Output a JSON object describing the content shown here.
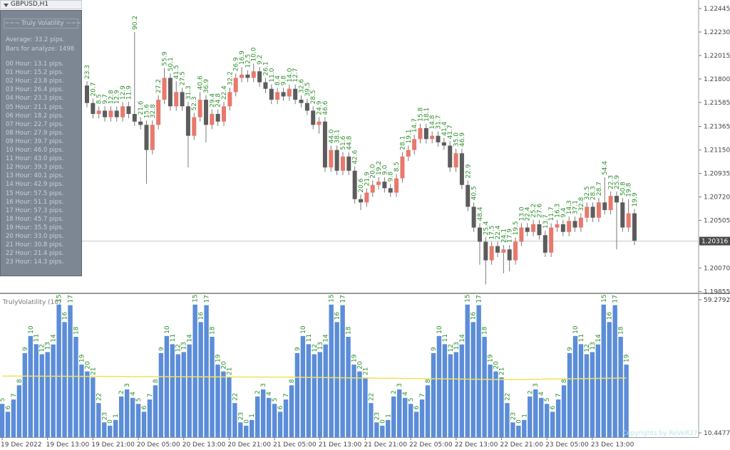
{
  "window": {
    "title": "GBPUSD,H1"
  },
  "info_panel": {
    "title": "~~~ Truly Volatility ~~~",
    "average": "Average: 33.2 pips.",
    "bars": "Bars for analyze: 1498",
    "hours": [
      "00 Hour: 13.1 pips.",
      "01 Hour: 15.2 pips.",
      "02 Hour: 23.8 pips.",
      "03 Hour: 26.4 pips.",
      "04 Hour: 23.3 pips.",
      "05 Hour: 21.1 pips.",
      "06 Hour: 18.2 pips.",
      "07 Hour: 22.7 pips.",
      "08 Hour: 27.9 pips.",
      "09 Hour: 39.7 pips.",
      "10 Hour: 46.0 pips.",
      "11 Hour: 43.0 pips.",
      "12 Hour: 39.3 pips.",
      "13 Hour: 40.1 pips.",
      "14 Hour: 42.9 pips.",
      "15 Hour: 57.5 pips.",
      "16 Hour: 51.1 pips.",
      "17 Hour: 57.3 pips.",
      "18 Hour: 45.7 pips.",
      "19 Hour: 35.5 pips.",
      "20 Hour: 33.0 pips.",
      "21 Hour: 30.8 pips.",
      "22 Hour: 21.4 pips.",
      "23 Hour: 14.3 pips."
    ]
  },
  "chart_data": [
    {
      "type": "candlestick",
      "up_color": "#e8796c",
      "down_color": "#5c5c5c",
      "label_color": "#2f8f2f",
      "ylim": [
        1.19844,
        1.2251
      ],
      "yticks": [
        1.22445,
        {
          "value": 1.2223,
          "label": "1.22230"
        },
        1.22015,
        {
          "value": 1.218,
          "label": "1.21800"
        },
        1.21585,
        1.21365,
        {
          "value": 1.2115,
          "label": "1.21150"
        },
        1.20935,
        {
          "value": 1.2072,
          "label": "1.20720"
        },
        1.20505,
        {
          "value": 1.2007,
          "label": "1.20070"
        },
        1.19855
      ],
      "current_price": 1.20316,
      "open": [
        1.2174,
        1.2158,
        1.2148,
        1.2151,
        1.2145,
        1.2151,
        1.2145,
        1.2155,
        1.2148,
        1.2141,
        1.2138,
        1.2115,
        1.2138,
        1.2161,
        1.2181,
        1.2155,
        1.2168,
        1.2155,
        1.2128,
        1.2145,
        1.2161,
        1.2138,
        1.2148,
        1.2141,
        1.2155,
        1.2168,
        1.2181,
        1.2184,
        1.2181,
        1.2187,
        1.2177,
        1.2171,
        1.2161,
        1.2168,
        1.2164,
        1.2171,
        1.2161,
        1.2158,
        1.2151,
        1.2138,
        1.2141,
        1.2099,
        1.2115,
        1.2096,
        1.2109,
        1.2096,
        1.207,
        1.2067,
        1.2076,
        1.2083,
        1.2086,
        1.208,
        1.2076,
        1.2089,
        1.2109,
        1.2115,
        1.2125,
        1.2135,
        1.2125,
        1.2128,
        1.2122,
        1.2119,
        1.2099,
        1.2112,
        1.2083,
        1.2063,
        1.2044,
        1.2031,
        1.2014,
        1.2027,
        1.2021,
        1.2024,
        1.2014,
        1.2031,
        1.2044,
        1.204,
        1.2047,
        1.2037,
        1.2021,
        1.2044,
        1.2047,
        1.204,
        1.205,
        1.2044,
        1.2053,
        1.2063,
        1.2053,
        1.2067,
        1.206,
        1.2073,
        1.2067,
        1.2044,
        1.2057
      ],
      "high": [
        1.2178,
        1.2162,
        1.2155,
        1.2155,
        1.2155,
        1.2155,
        1.2159,
        1.2159,
        1.2223,
        1.2145,
        1.2142,
        1.2142,
        1.2165,
        1.219,
        1.2185,
        1.2178,
        1.2172,
        1.2159,
        1.2149,
        1.2168,
        1.2165,
        1.2152,
        1.2152,
        1.2159,
        1.2172,
        1.2185,
        1.2191,
        1.2188,
        1.2194,
        1.2191,
        1.2181,
        1.2175,
        1.2172,
        1.2172,
        1.2175,
        1.2175,
        1.2165,
        1.2162,
        1.2155,
        1.2145,
        1.2145,
        1.2119,
        1.2119,
        1.2113,
        1.2113,
        1.21,
        1.2074,
        1.208,
        1.2087,
        1.209,
        1.209,
        1.2084,
        1.2093,
        1.2113,
        1.2119,
        1.2129,
        1.2139,
        1.2139,
        1.2132,
        1.2132,
        1.2126,
        1.2123,
        1.2116,
        1.2116,
        1.2087,
        1.2067,
        1.2048,
        1.2035,
        1.2031,
        1.2031,
        1.2028,
        1.2028,
        1.2035,
        1.2048,
        1.2048,
        1.2051,
        1.2051,
        1.2041,
        1.2048,
        1.2051,
        1.2051,
        1.2054,
        1.2054,
        1.2057,
        1.2067,
        1.2067,
        1.2071,
        1.209,
        1.2077,
        1.2077,
        1.2071,
        1.207,
        1.2061
      ],
      "low": [
        1.2154,
        1.2144,
        1.2144,
        1.2141,
        1.2141,
        1.2141,
        1.2141,
        1.2144,
        1.2137,
        1.2134,
        1.2084,
        1.2111,
        1.2134,
        1.2157,
        1.2151,
        1.2151,
        1.2151,
        1.2099,
        1.2124,
        1.2141,
        1.2122,
        1.2134,
        1.2137,
        1.2137,
        1.2151,
        1.2164,
        1.2177,
        1.2177,
        1.2177,
        1.2173,
        1.2167,
        1.2157,
        1.2157,
        1.216,
        1.216,
        1.2157,
        1.2154,
        1.2147,
        1.2134,
        1.213,
        1.2095,
        1.2095,
        1.2092,
        1.2092,
        1.2092,
        1.2066,
        1.206,
        1.2063,
        1.2072,
        1.2079,
        1.2076,
        1.2072,
        1.2072,
        1.2085,
        1.2105,
        1.2111,
        1.2121,
        1.2121,
        1.2121,
        1.2118,
        1.2115,
        1.2095,
        1.2095,
        1.2079,
        1.2059,
        1.204,
        1.201,
        1.1992,
        1.201,
        1.2017,
        1.2002,
        1.2004,
        1.201,
        1.2027,
        1.2036,
        1.2036,
        1.2033,
        1.2017,
        1.2017,
        1.204,
        1.2036,
        1.2036,
        1.204,
        1.204,
        1.2049,
        1.2049,
        1.2049,
        1.2056,
        1.2056,
        1.2024,
        1.204,
        1.204,
        1.2028
      ],
      "close": [
        1.2158,
        1.2148,
        1.2151,
        1.2145,
        1.2151,
        1.2145,
        1.2155,
        1.2148,
        1.2141,
        1.2138,
        1.2115,
        1.2138,
        1.2161,
        1.2181,
        1.2155,
        1.2168,
        1.2155,
        1.2128,
        1.2145,
        1.2161,
        1.2138,
        1.2148,
        1.2141,
        1.2155,
        1.2168,
        1.2181,
        1.2184,
        1.2181,
        1.2187,
        1.2177,
        1.2171,
        1.2161,
        1.2168,
        1.2164,
        1.2171,
        1.2161,
        1.2158,
        1.2151,
        1.2138,
        1.2141,
        1.2099,
        1.2115,
        1.2096,
        1.2109,
        1.2096,
        1.207,
        1.2067,
        1.2076,
        1.2083,
        1.2086,
        1.208,
        1.2076,
        1.2089,
        1.2109,
        1.2115,
        1.2125,
        1.2135,
        1.2125,
        1.2128,
        1.2122,
        1.2119,
        1.2099,
        1.2112,
        1.2083,
        1.2063,
        1.2044,
        1.2031,
        1.2014,
        1.2027,
        1.2021,
        1.2024,
        1.2014,
        1.2031,
        1.2044,
        1.204,
        1.2047,
        1.2037,
        1.2021,
        1.2044,
        1.2047,
        1.204,
        1.205,
        1.2044,
        1.2053,
        1.2063,
        1.2053,
        1.2067,
        1.206,
        1.2073,
        1.2067,
        1.2044,
        1.2057,
        1.2032
      ],
      "labels": [
        "23.3",
        "20.7",
        "8.5",
        "9.7",
        "12.8",
        "12.9",
        "12.9",
        "11.9",
        "90.2",
        "21.6",
        "15.6",
        "32.8",
        "27.2",
        "55.9",
        "50.1",
        "41.5",
        "27.5",
        "31.3",
        "52.3",
        "40.6",
        "36.9",
        "29.4",
        "24.8",
        "22.4",
        "32.2",
        "26.9",
        "16.9",
        "12.5",
        "10.0",
        "9.2",
        "26.1",
        "11.0",
        "8.4",
        "9.8",
        "14.0",
        "12.7",
        "32.6",
        "39.5",
        "28.5",
        "24.9",
        "46.6",
        "44.0",
        "38.1",
        "51.6",
        "44.8",
        "42.6",
        "20.6",
        "21.9",
        "20.0",
        "19.2",
        "9.0",
        "9.8",
        "8.5",
        "28.1",
        "19.1",
        "14.7",
        "15.8",
        "18.1",
        "14.8",
        "31.7",
        "41.4",
        "41.7",
        "35.0",
        "46.9",
        "22.9",
        "40.5",
        "48.4",
        "25.4",
        "17.5",
        "22.4",
        "24.1",
        "17.9",
        "19.5",
        "13.0",
        "22.4",
        "25.2",
        "27.6",
        "13.7",
        "11.7",
        "16.3",
        "9.4",
        "14.3",
        "37.1",
        "32.8",
        "32.5",
        "28.3",
        "28.7",
        "54.4",
        "22.3",
        "25.9",
        "50.8",
        "19.8",
        "19.9"
      ]
    },
    {
      "type": "bar",
      "title": "TrulyVolatility (10)",
      "color": "#5b8dd8",
      "label_color": "#2f8f2f",
      "ylim": [
        10.4477,
        59.2792
      ],
      "yticks": [
        59.2792,
        10.4477
      ],
      "hours": [
        5,
        6,
        7,
        8,
        9,
        10,
        11,
        12,
        13,
        14,
        15,
        16,
        17,
        18,
        19,
        20,
        21,
        22,
        23,
        0,
        1,
        2,
        3,
        4,
        5,
        6,
        7,
        8,
        9,
        10,
        11,
        12,
        13,
        14,
        15,
        16,
        17,
        18,
        19,
        20,
        21,
        22,
        23,
        0,
        1,
        2,
        3,
        4,
        5,
        6,
        7,
        8,
        9,
        10,
        11,
        12,
        13,
        14,
        15,
        16,
        17,
        18,
        19,
        20,
        21,
        22,
        23,
        0,
        1,
        2,
        3,
        4,
        5,
        6,
        7,
        8,
        9,
        10,
        11,
        12,
        13,
        14,
        15,
        16,
        17,
        18,
        19,
        20,
        21,
        22,
        23,
        0,
        1,
        2,
        3,
        4,
        5,
        6,
        7,
        8,
        9,
        10,
        11,
        12,
        13,
        14,
        15,
        16,
        17,
        18,
        19
      ],
      "values": [
        21.1,
        18.2,
        22.7,
        27.9,
        39.7,
        46.0,
        43.0,
        39.3,
        40.1,
        42.9,
        57.5,
        51.1,
        57.3,
        45.7,
        35.5,
        33.0,
        30.8,
        21.4,
        14.3,
        13.1,
        15.2,
        23.8,
        26.4,
        23.3,
        21.1,
        18.2,
        22.7,
        27.9,
        39.7,
        46.0,
        43.0,
        39.3,
        40.1,
        42.9,
        57.5,
        51.1,
        57.3,
        45.7,
        35.5,
        33.0,
        30.8,
        21.4,
        14.3,
        13.1,
        15.2,
        23.8,
        26.4,
        23.3,
        21.1,
        18.2,
        22.7,
        27.9,
        39.7,
        46.0,
        43.0,
        39.3,
        40.1,
        42.9,
        57.5,
        51.1,
        57.3,
        45.7,
        35.5,
        33.0,
        30.8,
        21.4,
        14.3,
        13.1,
        15.2,
        23.8,
        26.4,
        23.3,
        21.1,
        18.2,
        22.7,
        27.9,
        39.7,
        46.0,
        43.0,
        39.3,
        40.1,
        42.9,
        57.5,
        51.1,
        57.3,
        45.7,
        35.5,
        33.0,
        30.8,
        21.4,
        14.3,
        13.1,
        15.2,
        23.8,
        26.4,
        23.3,
        21.1,
        18.2,
        22.7,
        27.9,
        39.7,
        46.0,
        43.0,
        39.3,
        40.1,
        42.9,
        57.5,
        51.1,
        57.3,
        45.7,
        35.5
      ],
      "average": {
        "color": "#efe25a",
        "x": [
          0,
          50,
          90,
          110
        ],
        "values": [
          31.3,
          30.9,
          30.0,
          30.6
        ]
      },
      "xtick_labels": [
        "19 Dec 2022",
        "19 Dec 13:00",
        "19 Dec 21:00",
        "20 Dec 05:00",
        "20 Dec 13:00",
        "20 Dec 21:00",
        "21 Dec 05:00",
        "21 Dec 13:00",
        "21 Dec 21:00",
        "22 Dec 05:00",
        "22 Dec 13:00",
        "22 Dec 21:00",
        "23 Dec 05:00",
        "23 Dec 13:00"
      ],
      "watermark": "Copyrights by ReVeR27"
    }
  ]
}
